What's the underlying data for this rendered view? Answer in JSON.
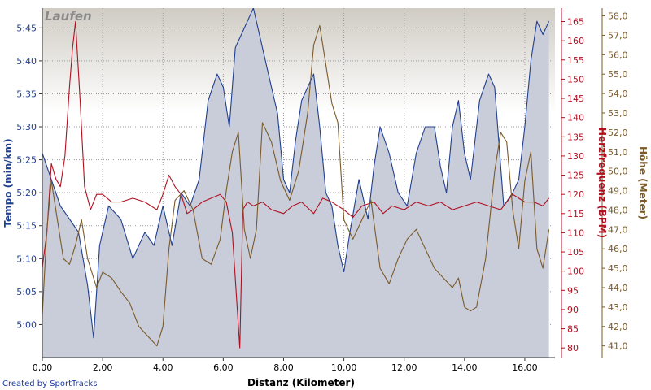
{
  "chart_data": {
    "type": "line",
    "title": "",
    "watermark": "Laufen",
    "credit": "Created by SportTracks",
    "xlabel": "Distanz (Kilometer)",
    "xlim": [
      0,
      17.0
    ],
    "x_ticks": [
      "0,00",
      "2,00",
      "4,00",
      "6,00",
      "8,00",
      "10,00",
      "12,00",
      "14,00",
      "16,00"
    ],
    "grid": true,
    "axes": {
      "tempo": {
        "label": "Tempo (min/km)",
        "color": "#1f3f8f",
        "ylim_seconds": [
          295,
          348
        ],
        "ticks": [
          "5:00",
          "5:05",
          "5:10",
          "5:15",
          "5:20",
          "5:25",
          "5:30",
          "5:35",
          "5:40",
          "5:45"
        ]
      },
      "heart_rate": {
        "label": "Herzfrequenz (BPM)",
        "color": "#b01020",
        "ylim": [
          77.5,
          168.5
        ],
        "ticks": [
          "80",
          "85",
          "90",
          "95",
          "100",
          "105",
          "110",
          "115",
          "120",
          "125",
          "130",
          "135",
          "140",
          "145",
          "150",
          "155",
          "160",
          "165"
        ]
      },
      "elevation": {
        "label": "Höhe (Meter)",
        "color": "#7a5a2a",
        "ylim": [
          40.4,
          58.4
        ],
        "ticks": [
          "41,0",
          "42,0",
          "43,0",
          "44,0",
          "45,0",
          "46,0",
          "47,0",
          "48,0",
          "49,0",
          "50,0",
          "51,0",
          "52,0",
          "53,0",
          "54,0",
          "55,0",
          "56,0",
          "57,0",
          "58,0"
        ]
      }
    },
    "series": [
      {
        "name": "Tempo",
        "axis": "tempo",
        "style": "area",
        "fill": "#c9ccd9",
        "line": "#1f3f8f",
        "x": [
          0.0,
          0.3,
          0.6,
          0.9,
          1.2,
          1.5,
          1.7,
          1.9,
          2.2,
          2.6,
          3.0,
          3.4,
          3.7,
          4.0,
          4.3,
          4.6,
          4.9,
          5.2,
          5.5,
          5.8,
          6.0,
          6.2,
          6.4,
          6.6,
          6.8,
          7.0,
          7.2,
          7.5,
          7.8,
          8.0,
          8.2,
          8.4,
          8.6,
          8.8,
          9.0,
          9.2,
          9.4,
          9.6,
          9.8,
          10.0,
          10.2,
          10.5,
          10.8,
          11.0,
          11.2,
          11.5,
          11.8,
          12.1,
          12.4,
          12.7,
          13.0,
          13.2,
          13.4,
          13.6,
          13.8,
          14.0,
          14.2,
          14.5,
          14.8,
          15.0,
          15.3,
          15.6,
          15.8,
          16.0,
          16.2,
          16.4,
          16.6,
          16.8
        ],
        "values": [
          326,
          322,
          318,
          316,
          314,
          306,
          298,
          312,
          318,
          316,
          310,
          314,
          312,
          318,
          312,
          320,
          318,
          322,
          334,
          338,
          336,
          330,
          342,
          344,
          346,
          348,
          344,
          338,
          332,
          322,
          320,
          328,
          334,
          336,
          338,
          330,
          320,
          318,
          312,
          308,
          314,
          322,
          316,
          324,
          330,
          326,
          320,
          318,
          326,
          330,
          330,
          324,
          320,
          330,
          334,
          326,
          322,
          334,
          338,
          336,
          318,
          320,
          322,
          330,
          340,
          346,
          344,
          346
        ]
      },
      {
        "name": "Herzfrequenz",
        "axis": "heart_rate",
        "style": "line",
        "line": "#b01020",
        "x": [
          0.0,
          0.15,
          0.3,
          0.45,
          0.6,
          0.75,
          0.9,
          1.0,
          1.1,
          1.25,
          1.4,
          1.6,
          1.8,
          2.0,
          2.3,
          2.6,
          3.0,
          3.4,
          3.8,
          4.0,
          4.2,
          4.4,
          4.6,
          4.8,
          5.0,
          5.3,
          5.6,
          5.9,
          6.1,
          6.3,
          6.45,
          6.55,
          6.65,
          6.8,
          7.0,
          7.3,
          7.6,
          8.0,
          8.3,
          8.6,
          9.0,
          9.3,
          9.6,
          9.8,
          10.0,
          10.3,
          10.6,
          11.0,
          11.3,
          11.6,
          12.0,
          12.4,
          12.8,
          13.2,
          13.6,
          14.0,
          14.4,
          14.8,
          15.2,
          15.6,
          16.0,
          16.3,
          16.6,
          16.8
        ],
        "values": [
          101,
          110,
          128,
          124,
          122,
          130,
          148,
          158,
          165,
          145,
          122,
          116,
          120,
          120,
          118,
          118,
          119,
          118,
          116,
          120,
          125,
          122,
          120,
          115,
          116,
          118,
          119,
          120,
          118,
          110,
          92,
          80,
          116,
          118,
          117,
          118,
          116,
          115,
          117,
          118,
          115,
          119,
          118,
          117,
          116,
          114,
          117,
          118,
          115,
          117,
          116,
          118,
          117,
          118,
          116,
          117,
          118,
          117,
          116,
          120,
          118,
          118,
          117,
          119
        ]
      },
      {
        "name": "Höhe",
        "axis": "elevation",
        "style": "line",
        "line": "#7a5a2a",
        "x": [
          0.0,
          0.15,
          0.3,
          0.5,
          0.7,
          0.9,
          1.1,
          1.3,
          1.5,
          1.8,
          2.0,
          2.3,
          2.6,
          2.9,
          3.2,
          3.5,
          3.8,
          4.0,
          4.2,
          4.4,
          4.7,
          5.0,
          5.3,
          5.6,
          5.9,
          6.1,
          6.3,
          6.5,
          6.7,
          6.9,
          7.1,
          7.3,
          7.6,
          7.9,
          8.2,
          8.5,
          8.8,
          9.0,
          9.2,
          9.4,
          9.6,
          9.8,
          10.0,
          10.3,
          10.6,
          10.9,
          11.2,
          11.5,
          11.8,
          12.1,
          12.4,
          12.7,
          13.0,
          13.3,
          13.6,
          13.8,
          14.0,
          14.2,
          14.4,
          14.7,
          15.0,
          15.2,
          15.4,
          15.6,
          15.8,
          16.0,
          16.2,
          16.4,
          16.6,
          16.8
        ],
        "values": [
          42.6,
          47.0,
          49.5,
          47.5,
          45.5,
          45.2,
          46.2,
          47.5,
          45.5,
          44.0,
          44.8,
          44.5,
          43.8,
          43.2,
          42.0,
          41.5,
          41.0,
          42.0,
          46.0,
          48.5,
          49.0,
          48.0,
          45.5,
          45.2,
          46.5,
          49.0,
          51.0,
          52.0,
          47.0,
          45.5,
          47.0,
          52.5,
          51.5,
          49.5,
          48.5,
          50.0,
          53.0,
          56.5,
          57.5,
          55.5,
          53.5,
          52.5,
          47.5,
          46.5,
          47.5,
          48.5,
          45.0,
          44.2,
          45.5,
          46.5,
          47.0,
          46.0,
          45.0,
          44.5,
          44.0,
          44.5,
          43.0,
          42.8,
          43.0,
          45.5,
          50.0,
          52.0,
          51.5,
          48.0,
          46.0,
          49.5,
          51.0,
          46.0,
          45.0,
          47.0
        ]
      }
    ]
  }
}
